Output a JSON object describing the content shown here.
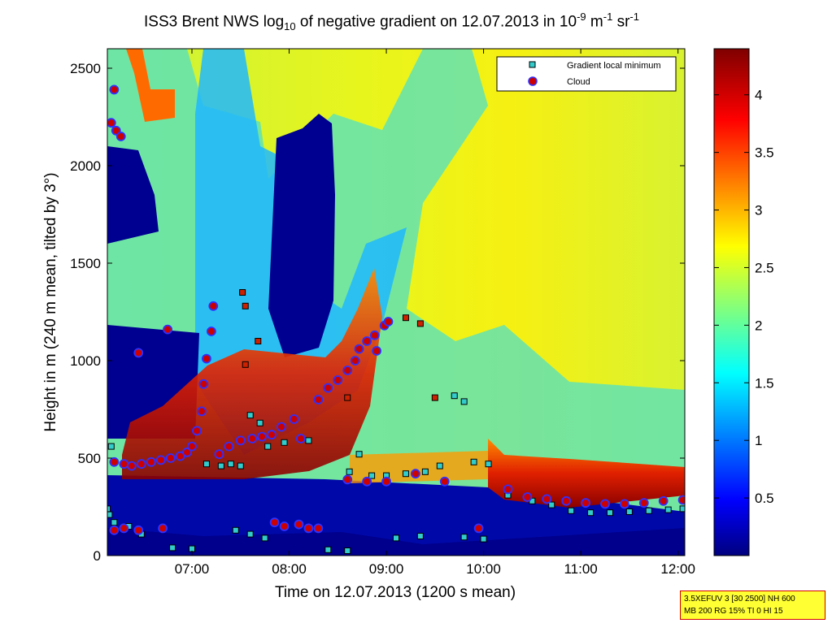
{
  "title": {
    "prefix": "ISS3 Brent NWS log",
    "sub": "10",
    "middle": " of negative gradient on 12.07.2013 in 10",
    "sup1": "-9",
    "unit1": " m",
    "sup2": "-1",
    "unit2": " sr",
    "sup3": "-1"
  },
  "info_box": {
    "line1": "3.5XEFUV 3 [30 2500] NH 600",
    "line2": "MB 200 RG 15% TI 0 HI 15"
  },
  "chart_data": {
    "type": "heatmap",
    "xlabel": "Time on 12.07.2013 (1200 s mean)",
    "ylabel": "Height in m (240 m mean, tilted by 3°)",
    "x_unit": "hours",
    "xlim": [
      6.13,
      12.07
    ],
    "ylim": [
      0,
      2600
    ],
    "x_ticks": [
      {
        "value": 7,
        "label": "07:00"
      },
      {
        "value": 8,
        "label": "08:00"
      },
      {
        "value": 9,
        "label": "09:00"
      },
      {
        "value": 10,
        "label": "10:00"
      },
      {
        "value": 11,
        "label": "11:00"
      },
      {
        "value": 12,
        "label": "12:00"
      }
    ],
    "y_ticks": [
      {
        "value": 0,
        "label": "0"
      },
      {
        "value": 500,
        "label": "500"
      },
      {
        "value": 1000,
        "label": "1000"
      },
      {
        "value": 1500,
        "label": "1500"
      },
      {
        "value": 2000,
        "label": "2000"
      },
      {
        "value": 2500,
        "label": "2500"
      }
    ],
    "colorbar": {
      "colormap": "jet",
      "range": [
        0,
        4.4
      ],
      "ticks": [
        {
          "value": 0.5,
          "label": "0.5"
        },
        {
          "value": 1,
          "label": "1"
        },
        {
          "value": 1.5,
          "label": "1.5"
        },
        {
          "value": 2,
          "label": "2"
        },
        {
          "value": 2.5,
          "label": "2.5"
        },
        {
          "value": 3,
          "label": "3"
        },
        {
          "value": 3.5,
          "label": "3.5"
        },
        {
          "value": 4,
          "label": "4"
        }
      ]
    },
    "legend": {
      "placement": "top-right",
      "entries": [
        {
          "label": "Gradient local minimum",
          "marker": "square",
          "color": "#33cccc"
        },
        {
          "label": "Cloud",
          "marker": "circle",
          "color": "#cc0000"
        }
      ]
    },
    "cloud_points": [
      [
        6.2,
        2390
      ],
      [
        6.17,
        2220
      ],
      [
        6.22,
        2180
      ],
      [
        6.27,
        2150
      ],
      [
        6.2,
        480
      ],
      [
        6.3,
        470
      ],
      [
        6.38,
        460
      ],
      [
        6.48,
        470
      ],
      [
        6.58,
        480
      ],
      [
        6.68,
        490
      ],
      [
        6.78,
        500
      ],
      [
        6.88,
        510
      ],
      [
        6.95,
        530
      ],
      [
        7.0,
        560
      ],
      [
        7.05,
        640
      ],
      [
        7.1,
        740
      ],
      [
        7.12,
        880
      ],
      [
        7.15,
        1010
      ],
      [
        7.2,
        1150
      ],
      [
        7.22,
        1280
      ],
      [
        7.28,
        520
      ],
      [
        7.38,
        560
      ],
      [
        7.5,
        590
      ],
      [
        7.62,
        600
      ],
      [
        7.72,
        610
      ],
      [
        7.82,
        620
      ],
      [
        7.92,
        660
      ],
      [
        8.05,
        700
      ],
      [
        8.12,
        600
      ],
      [
        8.3,
        800
      ],
      [
        8.4,
        860
      ],
      [
        8.5,
        900
      ],
      [
        8.6,
        950
      ],
      [
        8.68,
        1000
      ],
      [
        8.72,
        1060
      ],
      [
        8.8,
        1100
      ],
      [
        8.88,
        1130
      ],
      [
        8.98,
        1180
      ],
      [
        9.02,
        1200
      ],
      [
        8.9,
        1050
      ],
      [
        6.45,
        1040
      ],
      [
        6.75,
        1160
      ],
      [
        6.2,
        130
      ],
      [
        6.3,
        140
      ],
      [
        6.45,
        130
      ],
      [
        6.7,
        140
      ],
      [
        7.85,
        170
      ],
      [
        7.95,
        150
      ],
      [
        8.1,
        160
      ],
      [
        8.2,
        140
      ],
      [
        8.3,
        140
      ],
      [
        8.6,
        390
      ],
      [
        8.8,
        380
      ],
      [
        9.0,
        380
      ],
      [
        9.3,
        420
      ],
      [
        9.6,
        380
      ],
      [
        9.95,
        140
      ],
      [
        10.25,
        340
      ],
      [
        10.45,
        300
      ],
      [
        10.65,
        290
      ],
      [
        10.85,
        280
      ],
      [
        11.05,
        270
      ],
      [
        11.25,
        265
      ],
      [
        11.45,
        265
      ],
      [
        11.65,
        270
      ],
      [
        11.85,
        280
      ],
      [
        12.05,
        285
      ]
    ],
    "gradient_min_points": [
      [
        6.1,
        540
      ],
      [
        6.17,
        560
      ],
      [
        6.13,
        240
      ],
      [
        6.15,
        210
      ],
      [
        6.2,
        170
      ],
      [
        6.35,
        150
      ],
      [
        6.48,
        110
      ],
      [
        7.15,
        470
      ],
      [
        7.3,
        460
      ],
      [
        7.4,
        470
      ],
      [
        7.5,
        460
      ],
      [
        7.6,
        720
      ],
      [
        7.7,
        680
      ],
      [
        7.78,
        560
      ],
      [
        7.95,
        580
      ],
      [
        8.2,
        590
      ],
      [
        8.62,
        430
      ],
      [
        8.72,
        520
      ],
      [
        8.85,
        410
      ],
      [
        9.0,
        410
      ],
      [
        9.2,
        420
      ],
      [
        9.4,
        430
      ],
      [
        9.55,
        460
      ],
      [
        9.7,
        820
      ],
      [
        9.8,
        790
      ],
      [
        9.9,
        480
      ],
      [
        10.05,
        470
      ],
      [
        10.25,
        310
      ],
      [
        10.5,
        280
      ],
      [
        10.7,
        260
      ],
      [
        10.9,
        230
      ],
      [
        11.1,
        220
      ],
      [
        11.3,
        220
      ],
      [
        11.5,
        225
      ],
      [
        11.7,
        230
      ],
      [
        11.9,
        235
      ],
      [
        12.05,
        240
      ],
      [
        9.1,
        90
      ],
      [
        9.35,
        100
      ],
      [
        9.8,
        95
      ],
      [
        10.0,
        85
      ],
      [
        7.45,
        130
      ],
      [
        7.6,
        110
      ],
      [
        7.75,
        90
      ],
      [
        6.8,
        40
      ],
      [
        7.0,
        35
      ],
      [
        8.4,
        30
      ],
      [
        8.6,
        25
      ]
    ],
    "dark_gradient_points": [
      [
        7.52,
        1350
      ],
      [
        7.55,
        1280
      ],
      [
        7.68,
        1100
      ],
      [
        7.55,
        980
      ],
      [
        9.2,
        1220
      ],
      [
        9.35,
        1190
      ],
      [
        9.5,
        810
      ],
      [
        8.6,
        810
      ]
    ]
  }
}
